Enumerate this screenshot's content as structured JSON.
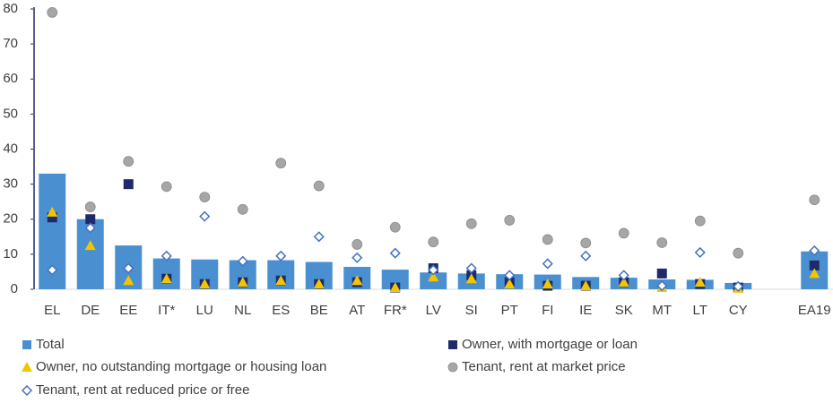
{
  "chart_data": {
    "type": "bar",
    "categories": [
      "EL",
      "DE",
      "EE",
      "IT*",
      "LU",
      "NL",
      "ES",
      "BE",
      "AT",
      "FR*",
      "LV",
      "SI",
      "PT",
      "FI",
      "IE",
      "SK",
      "MT",
      "LT",
      "CY",
      null,
      "EA19"
    ],
    "ylim": [
      0,
      80
    ],
    "yticks": [
      0,
      10,
      20,
      30,
      40,
      50,
      60,
      70,
      80
    ],
    "grid": false,
    "series": [
      {
        "name": "Total",
        "marker": "bar",
        "color": "#4a90d0",
        "values": [
          33,
          20,
          12.5,
          8.8,
          8.5,
          8.3,
          8.3,
          7.8,
          6.4,
          5.6,
          4.8,
          4.5,
          4.3,
          4.2,
          3.5,
          3.3,
          2.8,
          2.7,
          1.8,
          null,
          10.8
        ]
      },
      {
        "name": "Owner, with mortgage or loan",
        "marker": "square",
        "color": "#1f2a6b",
        "values": [
          20.5,
          20,
          30,
          3,
          1.5,
          2,
          2.5,
          1.5,
          2,
          0.5,
          6,
          4,
          2,
          1,
          1,
          2,
          4.5,
          1.5,
          0.5,
          null,
          6.8
        ]
      },
      {
        "name": "Owner, no outstanding mortgage or housing loan",
        "marker": "triangle",
        "color": "#f2c500",
        "values": [
          22,
          12.5,
          2.5,
          3,
          1.5,
          2,
          2.5,
          1.5,
          2.5,
          0.5,
          3.5,
          3,
          1.5,
          1.5,
          1,
          2,
          0.5,
          2,
          0.3,
          null,
          4.5
        ]
      },
      {
        "name": "Tenant, rent at market price",
        "marker": "circle",
        "color": "#a6a6a6",
        "values": [
          79,
          23.5,
          36.5,
          29.3,
          26.3,
          22.8,
          36,
          29.5,
          12.8,
          17.7,
          13.5,
          18.7,
          19.7,
          14.2,
          13.2,
          16,
          13.3,
          19.5,
          10.3,
          null,
          25.5
        ]
      },
      {
        "name": "Tenant, rent at reduced price or free",
        "marker": "diamond",
        "color": "#4472c4",
        "values": [
          5.5,
          17.5,
          6,
          9.5,
          20.8,
          8,
          9.5,
          15,
          9,
          10.3,
          5.5,
          6,
          4,
          7.3,
          9.5,
          4,
          1,
          10.5,
          0.8,
          null,
          11
        ]
      }
    ]
  }
}
